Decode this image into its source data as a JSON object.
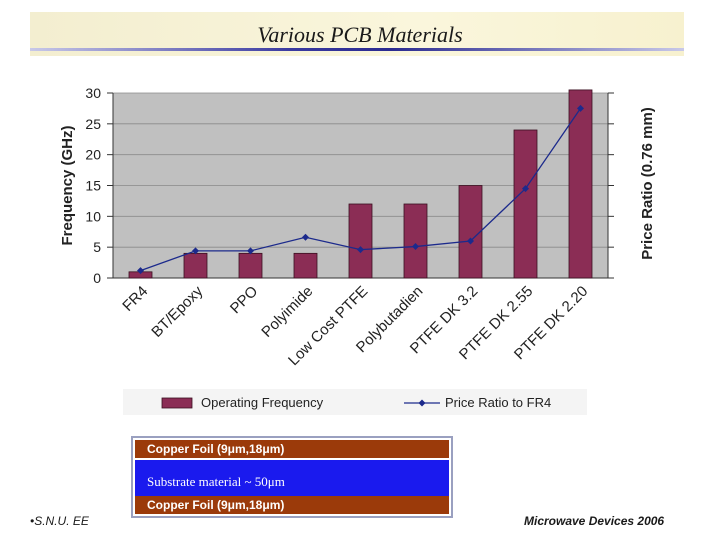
{
  "slide": {
    "title": "Various PCB Materials",
    "footer_left": "S.N.U. EE",
    "footer_right": "Microwave Devices 2006"
  },
  "stack": {
    "top_foil": "Copper Foil (9μm,18μm)",
    "substrate": "Substrate material ~ 50μm",
    "bottom_foil": "Copper Foil (9μm,18μm)"
  },
  "chart_data": {
    "type": "bar",
    "categories": [
      "FR4",
      "BT/Epoxy",
      "PPO",
      "Polyimide",
      "Low Cost PTFE",
      "Polybutadien",
      "PTFE DK 3.2",
      "PTFE DK 2.55",
      "PTFE DK 2.20"
    ],
    "series": [
      {
        "name": "Operating Frequency",
        "type": "bar",
        "axis": "left",
        "color": "#8b2d55",
        "values": [
          1,
          4,
          4,
          4,
          12,
          12,
          15,
          24,
          30.5
        ]
      },
      {
        "name": "Price Ratio to FR4",
        "type": "line",
        "axis": "right",
        "color": "#1c2a8c",
        "values": [
          1.2,
          4.4,
          4.4,
          6.6,
          4.6,
          5.1,
          6.0,
          14.5,
          27.5
        ]
      }
    ],
    "ylabel": "Frequency (GHz)",
    "y2label": "Price Ratio (0.76 mm)",
    "ylim": [
      0,
      30
    ],
    "yticks": [
      0,
      5,
      10,
      15,
      20,
      25,
      30
    ],
    "grid": true,
    "plot_background": "#c0c0c0",
    "legend_position": "bottom"
  }
}
